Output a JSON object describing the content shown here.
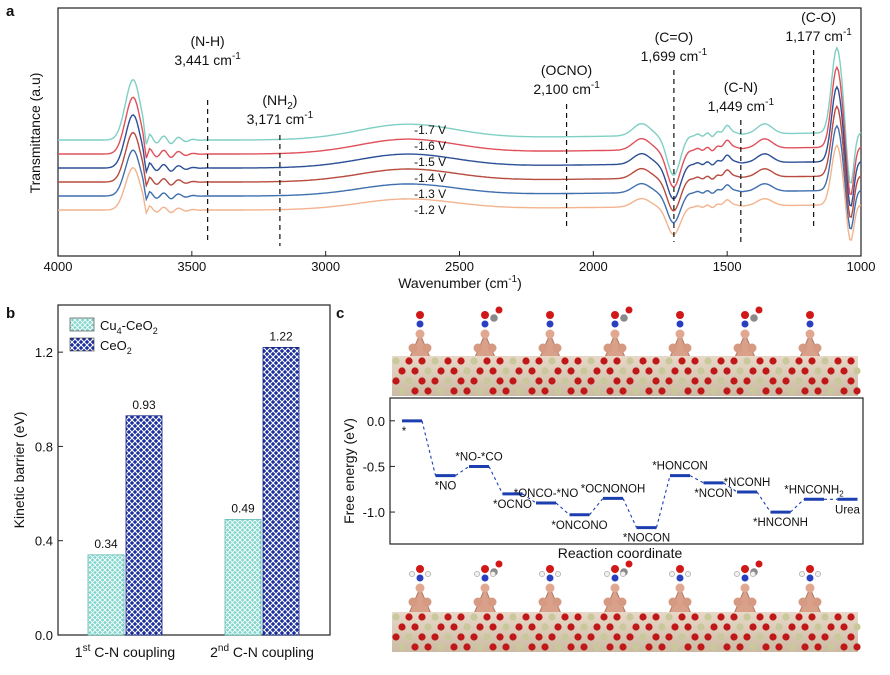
{
  "panels": {
    "a": "a",
    "b": "b",
    "c": "c"
  },
  "chart_data": [
    {
      "panel": "a",
      "type": "line",
      "xlabel": "Wavenumber (cm",
      "xlabel_sup": "-1",
      "xlabel_end": ")",
      "ylabel": "Transmittance (a.u)",
      "xlim": [
        4000,
        1000
      ],
      "x_reversed": true,
      "xticks": [
        4000,
        3500,
        3000,
        2500,
        2000,
        1500,
        1000
      ],
      "series": [
        {
          "name": "-1.7 V",
          "color": "#7fcfc4",
          "baseline": 0
        },
        {
          "name": "-1.6 V",
          "color": "#e0505a",
          "baseline": 1
        },
        {
          "name": "-1.5 V",
          "color": "#2c4f96",
          "baseline": 2
        },
        {
          "name": "-1.4 V",
          "color": "#b84a3e",
          "baseline": 3
        },
        {
          "name": "-1.3 V",
          "color": "#3f6fae",
          "baseline": 4
        },
        {
          "name": "-1.2 V",
          "color": "#f2b48f",
          "baseline": 5
        }
      ],
      "annotations": [
        {
          "x": 3441,
          "name": "(N-H)",
          "value": "3,441 cm",
          "sup": "-1"
        },
        {
          "x": 3171,
          "name": "(NH",
          "name_sub": "2",
          "name_end": ")",
          "value": "3,171 cm",
          "sup": "-1"
        },
        {
          "x": 2100,
          "name": "(OCNO)",
          "value": "2,100 cm",
          "sup": "-1"
        },
        {
          "x": 1699,
          "name": "(C=O)",
          "value": "1,699 cm",
          "sup": "-1"
        },
        {
          "x": 1449,
          "name": "(C-N)",
          "value": "1,449 cm",
          "sup": "-1"
        },
        {
          "x": 1177,
          "name": "(C-O)",
          "value": "1,177 cm",
          "sup": "-1"
        }
      ]
    },
    {
      "panel": "b",
      "type": "bar",
      "ylabel": "Kinetic barrier (eV)",
      "ylim": [
        0,
        1.4
      ],
      "yticks": [
        "0.0",
        "0.4",
        "0.8",
        "1.2"
      ],
      "categories": [
        {
          "pre": "1",
          "sup": "st",
          "post": " C-N coupling"
        },
        {
          "pre": "2",
          "sup": "nd",
          "post": " C-N coupling"
        }
      ],
      "series": [
        {
          "name": "Cu",
          "name_sub": "4",
          "name_end": "-CeO",
          "name_sub2": "2",
          "color": "#6fcfc6",
          "values": [
            0.34,
            0.49
          ],
          "labels": [
            "0.34",
            "0.49"
          ]
        },
        {
          "name": "CeO",
          "name_sub": "2",
          "name_end": "",
          "name_sub2": "",
          "color": "#1c2f9e",
          "values": [
            0.93,
            1.22
          ],
          "labels": [
            "0.93",
            "1.22"
          ]
        }
      ],
      "legend": "top-left"
    },
    {
      "panel": "c",
      "type": "line",
      "ylabel": "Free energy (eV)",
      "xlabel": "Reaction coordinate",
      "ylim": [
        -1.35,
        0.25
      ],
      "yticks": [
        "0.0",
        "-0.5",
        "-1.0"
      ],
      "color": "#1c3fb0",
      "steps": [
        {
          "label": "*",
          "value": 0.0
        },
        {
          "label": "*NO",
          "value": -0.6
        },
        {
          "label": "*NO-*CO",
          "value": -0.5
        },
        {
          "label": "*OCNO",
          "value": -0.8
        },
        {
          "label": "*ONCO-*NO",
          "value": -0.9
        },
        {
          "label": "*ONCONO",
          "value": -1.03
        },
        {
          "label": "*OCNONOH",
          "value": -0.85
        },
        {
          "label": "*NOCON",
          "value": -1.17
        },
        {
          "label": "*HONCON",
          "value": -0.6
        },
        {
          "label": "*NCON",
          "value": -0.68
        },
        {
          "label": "*NCONH",
          "value": -0.78
        },
        {
          "label": "*HNCONH",
          "value": -1.0
        },
        {
          "label": "*HNCONH",
          "label_sub": "2",
          "value": -0.86
        },
        {
          "label": "Urea",
          "value": -0.86
        }
      ]
    }
  ]
}
